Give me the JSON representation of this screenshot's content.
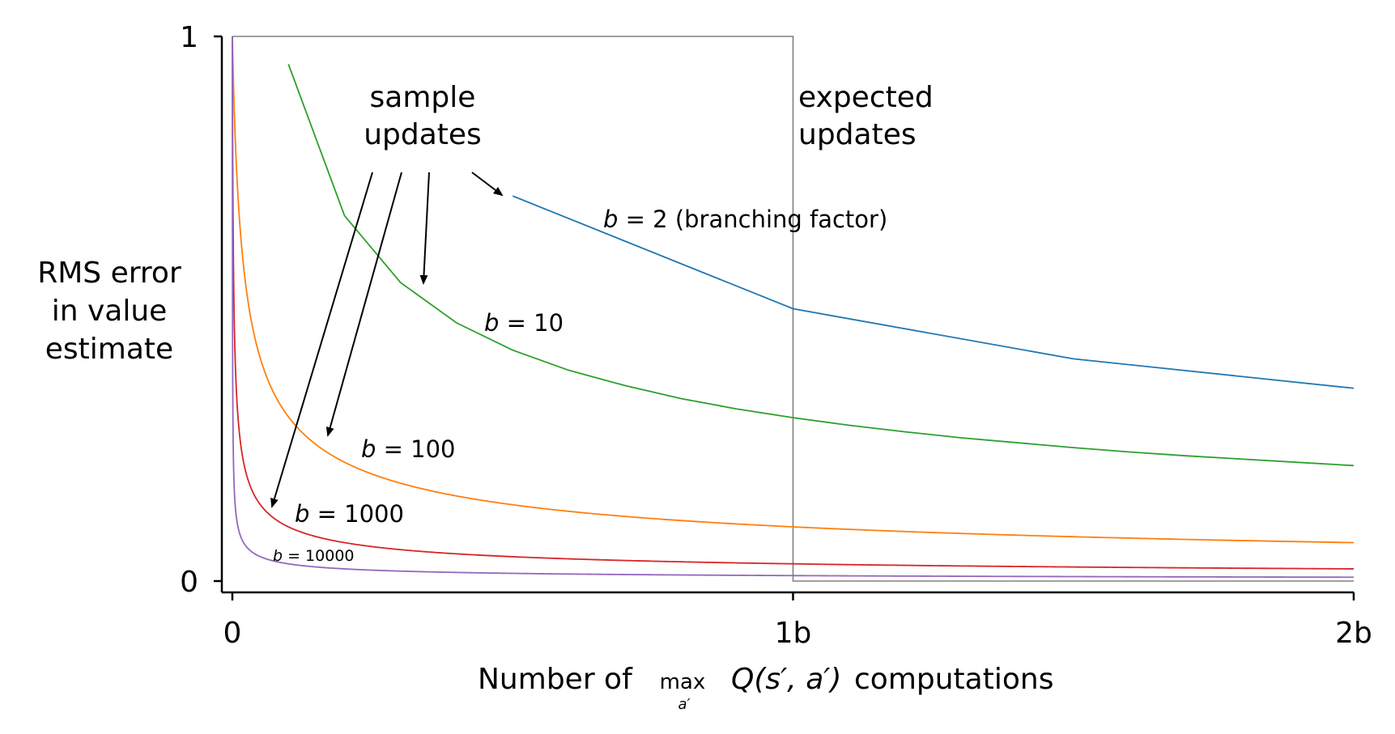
{
  "chart_data": {
    "type": "line",
    "xlabel": {
      "prefix": "Number of ",
      "max_word": "max",
      "max_sub": "a′",
      "expr": "Q(s′, a′)",
      "suffix": " computations"
    },
    "ylabel": [
      "RMS error",
      "in value",
      "estimate"
    ],
    "xlim": [
      0,
      2
    ],
    "ylim": [
      0,
      1
    ],
    "x_ticks": [
      {
        "value": 0,
        "label": "0"
      },
      {
        "value": 1,
        "label": "1b"
      },
      {
        "value": 2,
        "label": "2b"
      }
    ],
    "y_ticks": [
      {
        "value": 0,
        "label": "0"
      },
      {
        "value": 1,
        "label": "1"
      }
    ],
    "x_unit_note": "x measured in multiples of b",
    "annotations": {
      "sample_updates": [
        "sample",
        "updates"
      ],
      "expected_updates": [
        "expected",
        "updates"
      ]
    },
    "series": [
      {
        "name": "b = 2 (branching factor)",
        "label_var": "b",
        "label_eq": " = 2",
        "label_extra": " (branching factor)",
        "color": "#1f77b4",
        "x": [
          0.5,
          1.0,
          1.5,
          2.0
        ],
        "y": [
          0.707,
          0.5,
          0.408,
          0.354
        ]
      },
      {
        "name": "b = 10",
        "label_var": "b",
        "label_eq": " = 10",
        "label_extra": "",
        "color": "#2ca02c",
        "x": [
          0.1,
          0.2,
          0.3,
          0.4,
          0.5,
          0.6,
          0.7,
          0.8,
          0.9,
          1.0,
          1.1,
          1.2,
          1.3,
          1.4,
          1.5,
          1.6,
          1.7,
          1.8,
          1.9,
          2.0
        ],
        "y": [
          0.949,
          0.671,
          0.548,
          0.474,
          0.424,
          0.387,
          0.359,
          0.335,
          0.316,
          0.3,
          0.286,
          0.274,
          0.263,
          0.254,
          0.245,
          0.237,
          0.23,
          0.224,
          0.218,
          0.212
        ]
      },
      {
        "name": "b = 100",
        "label_var": "b",
        "label_eq": " = 100",
        "label_extra": "",
        "color": "#ff7f0e",
        "formula": "sqrt(1/(1 + x*b))",
        "b": 100
      },
      {
        "name": "b = 1000",
        "label_var": "b",
        "label_eq": " = 1000",
        "label_extra": "",
        "color": "#d62728",
        "formula": "sqrt(1/(1 + x*b))",
        "b": 1000
      },
      {
        "name": "b = 10000",
        "label_var": "b",
        "label_eq": " = 10000",
        "label_extra": "",
        "color": "#9467bd",
        "formula": "sqrt(1/(1 + x*b))",
        "b": 10000
      }
    ],
    "expected_update_box": {
      "x0": 0,
      "x1": 1,
      "y0": 0,
      "y1": 1,
      "color": "#808080"
    },
    "grid": false,
    "legend": "none"
  }
}
